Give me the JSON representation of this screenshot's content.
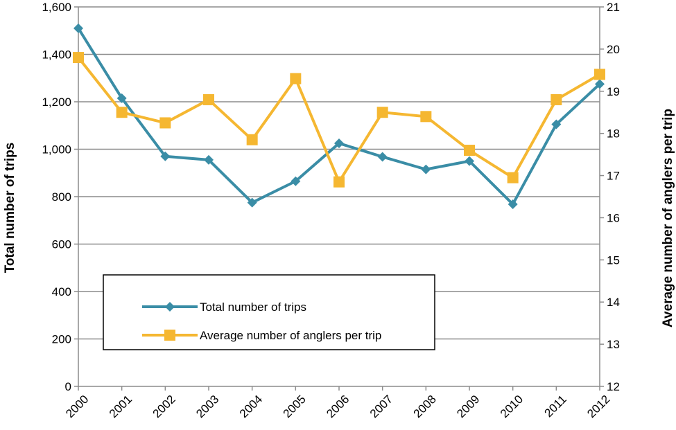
{
  "chart_data": {
    "type": "line",
    "title": "",
    "categories": [
      "2000",
      "2001",
      "2002",
      "2003",
      "2004",
      "2005",
      "2006",
      "2007",
      "2008",
      "2009",
      "2010",
      "2011",
      "2012"
    ],
    "y_left": {
      "label": "Total number of trips",
      "range": [
        0,
        1600
      ],
      "ticks": [
        "0",
        "200",
        "400",
        "600",
        "800",
        "1,000",
        "1,200",
        "1,400",
        "1,600"
      ]
    },
    "y_right": {
      "label": "Average number of anglers per trip",
      "range": [
        12,
        21
      ],
      "ticks": [
        "12",
        "13",
        "14",
        "15",
        "16",
        "17",
        "18",
        "19",
        "20",
        "21"
      ]
    },
    "series": [
      {
        "name": "Total number of trips",
        "axis": "left",
        "color": "#3a8da6",
        "marker": "diamond",
        "values": [
          1510,
          1215,
          970,
          955,
          775,
          865,
          1025,
          968,
          915,
          950,
          768,
          1105,
          1275
        ]
      },
      {
        "name": "Average number of anglers per trip",
        "axis": "right",
        "color": "#f5b731",
        "marker": "square",
        "values": [
          19.8,
          18.5,
          18.25,
          18.8,
          17.85,
          19.3,
          16.85,
          18.5,
          18.4,
          17.6,
          16.95,
          18.8,
          19.4
        ]
      }
    ],
    "grid": true,
    "legend": "lower-left"
  }
}
